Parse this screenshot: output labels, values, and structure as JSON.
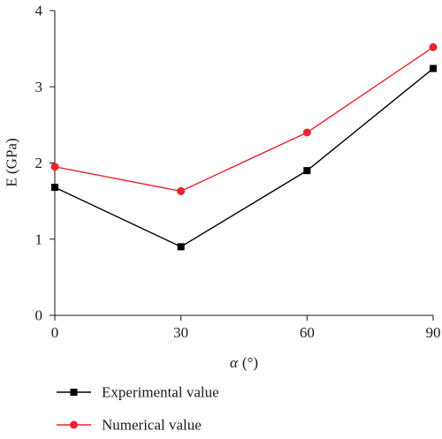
{
  "chart_data": {
    "type": "line",
    "title": "",
    "xlabel_symbol": "α",
    "xlabel_unit": "(°)",
    "ylabel": "E (GPa)",
    "x": [
      0,
      30,
      60,
      90
    ],
    "xticks": [
      "0",
      "30",
      "60",
      "90"
    ],
    "yticks": [
      "0",
      "1",
      "2",
      "3",
      "4"
    ],
    "xlim": [
      0,
      90
    ],
    "ylim": [
      0,
      4
    ],
    "grid": false,
    "legend_position": "bottom-left",
    "series": [
      {
        "name": "Experimental value",
        "values": [
          1.68,
          0.9,
          1.9,
          3.24
        ],
        "color": "#000000",
        "marker": "square"
      },
      {
        "name": "Numerical value",
        "values": [
          1.95,
          1.63,
          2.4,
          3.52
        ],
        "color": "#e8232e",
        "marker": "circle"
      }
    ]
  }
}
